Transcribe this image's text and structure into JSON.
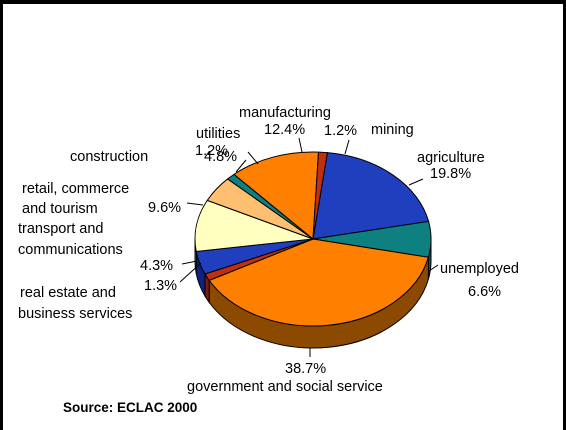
{
  "chart_data": {
    "type": "pie",
    "title": "",
    "slices": [
      {
        "label": "agriculture",
        "value_label": "19.8%",
        "value": 19.8,
        "color": "#1f3fbf",
        "side": "#0f2280"
      },
      {
        "label": "unemployed",
        "value_label": "6.6%",
        "value": 6.6,
        "color": "#0f8080",
        "side": "#0a5555"
      },
      {
        "label": "government and social service",
        "value_label": "38.7%",
        "value": 38.7,
        "color": "#ff8000",
        "side": "#8c4a00"
      },
      {
        "label": "real estate and business services",
        "value_label": "1.3%",
        "value": 1.3,
        "color": "#c03010",
        "side": "#7a1d08"
      },
      {
        "label": "transport and communications",
        "value_label": "4.3%",
        "value": 4.3,
        "color": "#1f3fbf",
        "side": "#0f2280"
      },
      {
        "label": "retail, commerce and tourism",
        "value_label": "9.6%",
        "value": 9.6,
        "color": "#ffffc0",
        "side": "#b8b880"
      },
      {
        "label": "construction",
        "value_label": "4.8%",
        "value": 4.8,
        "color": "#ffbf70",
        "side": "#b07d3e"
      },
      {
        "label": "utilities",
        "value_label": "1.2%",
        "value": 1.2,
        "color": "#0f8080",
        "side": "#0a5555"
      },
      {
        "label": "manufacturing",
        "value_label": "12.4%",
        "value": 12.4,
        "color": "#ff8000",
        "side": "#8c4a00"
      },
      {
        "label": "mining",
        "value_label": "1.2%",
        "value": 1.2,
        "color": "#c03010",
        "side": "#7a1d08"
      }
    ],
    "source": "Source: ECLAC 2000"
  }
}
